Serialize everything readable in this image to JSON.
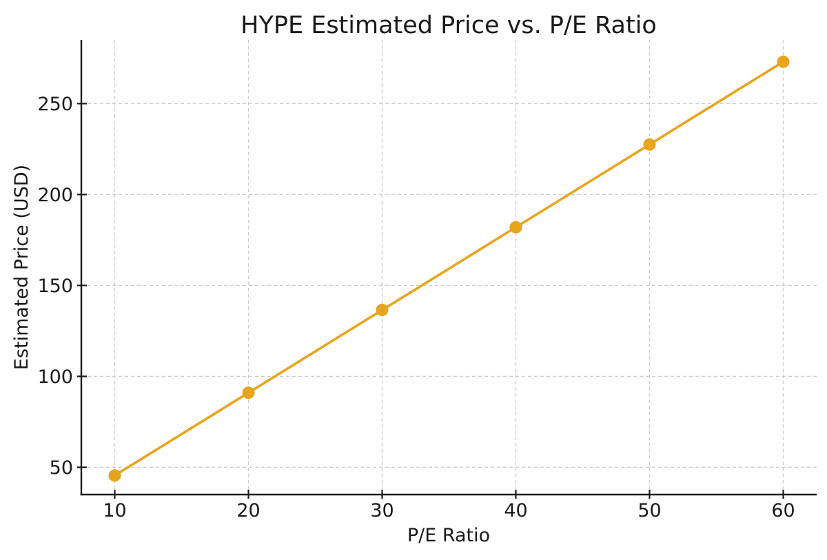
{
  "chart_data": {
    "type": "line",
    "title": "HYPE Estimated Price vs. P/E Ratio",
    "xlabel": "P/E Ratio",
    "ylabel": "Estimated Price (USD)",
    "x": [
      10,
      20,
      30,
      40,
      50,
      60
    ],
    "series": [
      {
        "name": "Estimated Price",
        "values": [
          45.5,
          91.0,
          136.5,
          182.0,
          227.5,
          273.0
        ]
      }
    ],
    "xticks": [
      10,
      20,
      30,
      40,
      50,
      60
    ],
    "yticks": [
      50,
      100,
      150,
      200,
      250
    ],
    "xlim": [
      7.5,
      62.5
    ],
    "ylim": [
      35,
      285
    ],
    "grid": true,
    "grid_style": "dashed",
    "legend": "none",
    "marker": "circle",
    "colors": {
      "line": "#E8A41C",
      "marker": "#E8A41C",
      "grid": "#cbcbcb",
      "axis": "#1a1a1a",
      "text": "#1a1a1a",
      "background": "#ffffff"
    }
  }
}
